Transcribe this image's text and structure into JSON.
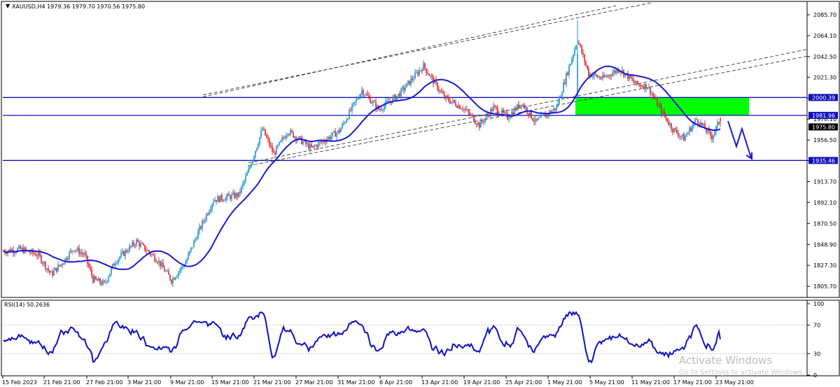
{
  "chart_data": [
    {
      "type": "candlestick",
      "title": "XAUUSD,H4  1979.36 1979.70 1970.56 1975.80",
      "symbol": "XAUUSD,H4",
      "ohlc_header": {
        "open": 1979.36,
        "high": 1979.7,
        "low": 1970.56,
        "close": 1975.8
      },
      "ylim": [
        1795,
        2098
      ],
      "yticks": [
        "2085.70",
        "2064.10",
        "2042.50",
        "2021.30",
        "1999.70",
        "1978.10",
        "1956.50",
        "1935.30",
        "1913.70",
        "1892.10",
        "1870.50",
        "1848.90",
        "1827.30",
        "1805.70"
      ],
      "xticks": [
        "15 Feb 2023",
        "21 Feb 21:00",
        "27 Feb 21:00",
        "3 Mar 21:00",
        "9 Mar 21:00",
        "15 Mar 21:00",
        "21 Mar 21:00",
        "27 Mar 21:00",
        "31 Mar 21:00",
        "6 Apr 21:00",
        "13 Apr 21:00",
        "19 Apr 21:00",
        "25 Apr 21:00",
        "1 May 21:00",
        "5 May 21:00",
        "11 May 21:00",
        "17 May 21:00",
        "23 May 21:00"
      ],
      "current_price": "1975.80",
      "horizontal_levels": [
        {
          "value": 2000.39,
          "label": "2000.39"
        },
        {
          "value": 1981.96,
          "label": "1981.96"
        },
        {
          "value": 1935.46,
          "label": "1935.46"
        }
      ],
      "resistance_zone": {
        "top": 2000.39,
        "bottom": 1981.96,
        "color": "#00ff00"
      },
      "channel_lines": "dashed ascending channel lines",
      "moving_average_color": "#1a1ad0",
      "projection_arrow_color": "#1a1ad0",
      "up_color": "#1a8fd6",
      "down_color": "#e02020",
      "level_color": "#1010c0",
      "grid": false
    },
    {
      "type": "line",
      "title": "RSI(14) 50.2636",
      "ylim": [
        0,
        100
      ],
      "yticks": [
        "100",
        "70",
        "30",
        "0"
      ],
      "levels": [
        70,
        30
      ],
      "color": "#1010c0",
      "last_value": 50.2636
    }
  ],
  "watermark": {
    "line1": "Activate Windows",
    "line2": "Go to Settings to activate Windows."
  }
}
